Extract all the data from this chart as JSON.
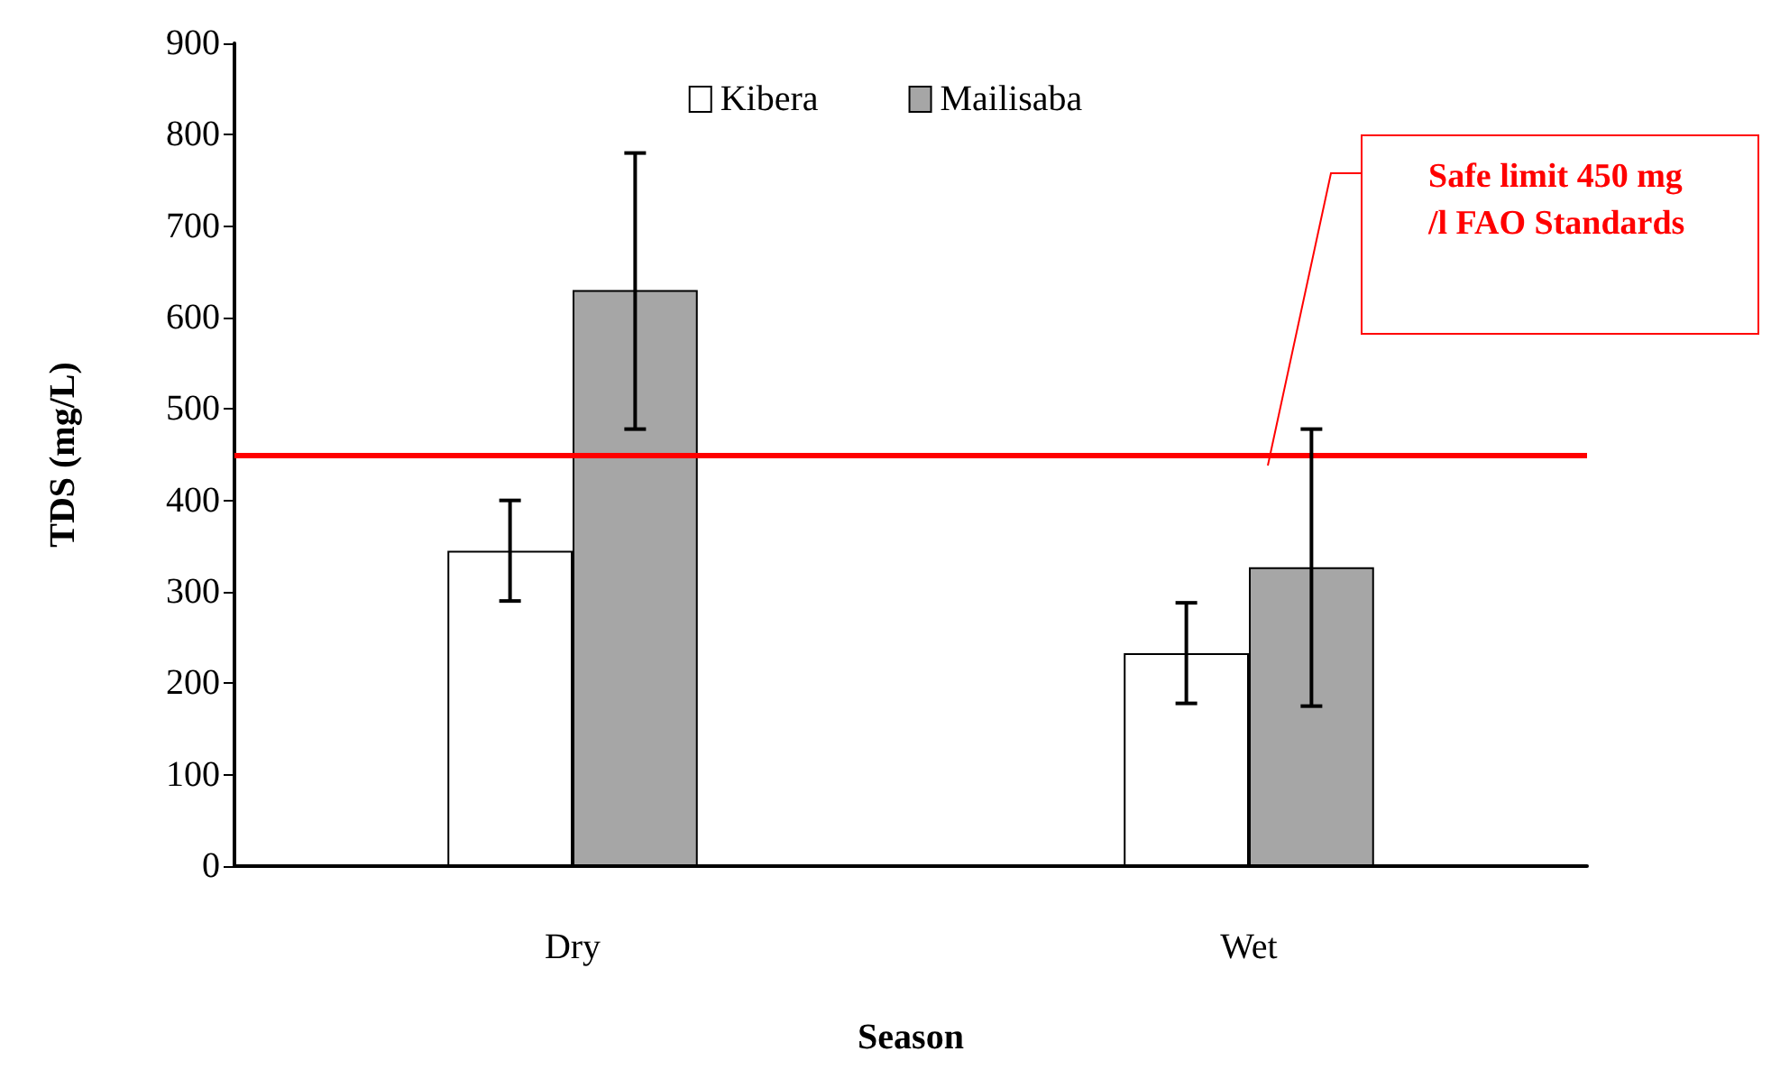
{
  "chart_data": {
    "type": "bar",
    "xlabel": "Season",
    "ylabel": "TDS (mg/L)",
    "categories": [
      "Dry",
      "Wet"
    ],
    "series": [
      {
        "name": "Kibera",
        "color": "#ffffff",
        "values": [
          345,
          233
        ],
        "errors": [
          55,
          55
        ]
      },
      {
        "name": "Mailisaba",
        "color": "#a6a6a6",
        "values": [
          630,
          327
        ],
        "errors": [
          [
            478,
            780
          ],
          [
            175,
            478
          ]
        ]
      }
    ],
    "ylim": [
      0,
      900
    ],
    "yticks": [
      0,
      100,
      200,
      300,
      400,
      500,
      600,
      700,
      800,
      900
    ],
    "grid": false,
    "legend": "top",
    "ref_lines": [
      {
        "axis": "y",
        "value": 450,
        "label": "Safe limit 450 mg/l FAO Standards",
        "color": "#ff0000"
      }
    ]
  }
}
